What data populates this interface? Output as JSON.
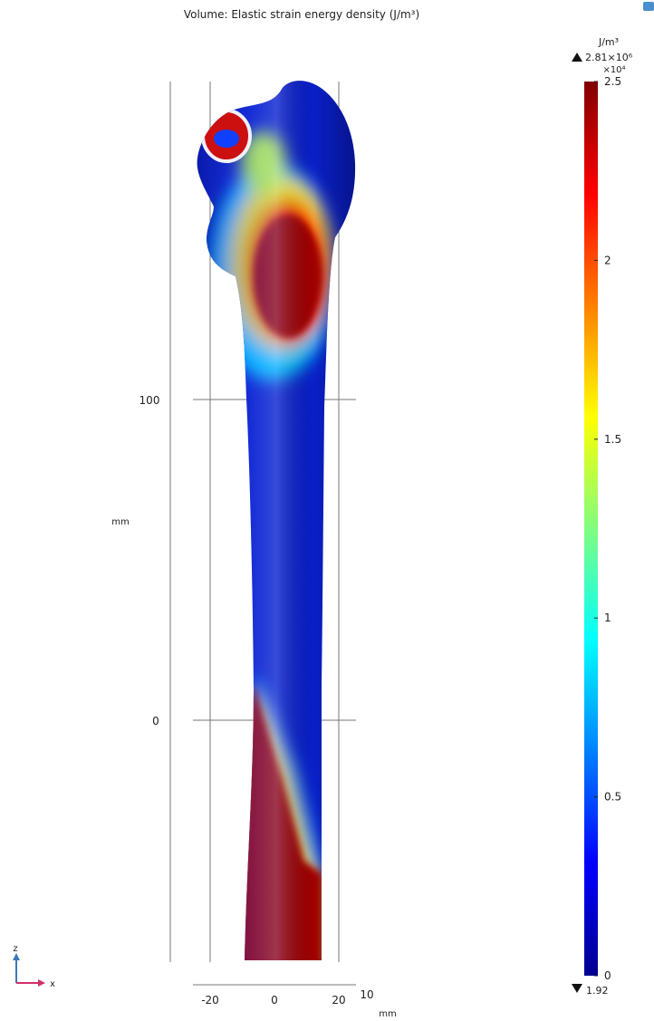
{
  "title": "Volume: Elastic strain energy density (J/m³)",
  "axes": {
    "z_ticks": [
      "100",
      "0"
    ],
    "z_unit": "mm",
    "x_ticks": [
      "-20",
      "0",
      "20"
    ],
    "x_extra": "10",
    "x_unit": "mm"
  },
  "colorbar": {
    "unit": "J/m³",
    "max_label": "2.81×10⁶",
    "multiplier": "×10⁴",
    "ticks": [
      "2.5",
      "2",
      "1.5",
      "1",
      "0.5",
      "0"
    ],
    "min_label": "1.92"
  },
  "triad": {
    "z": "z",
    "x": "x"
  }
}
